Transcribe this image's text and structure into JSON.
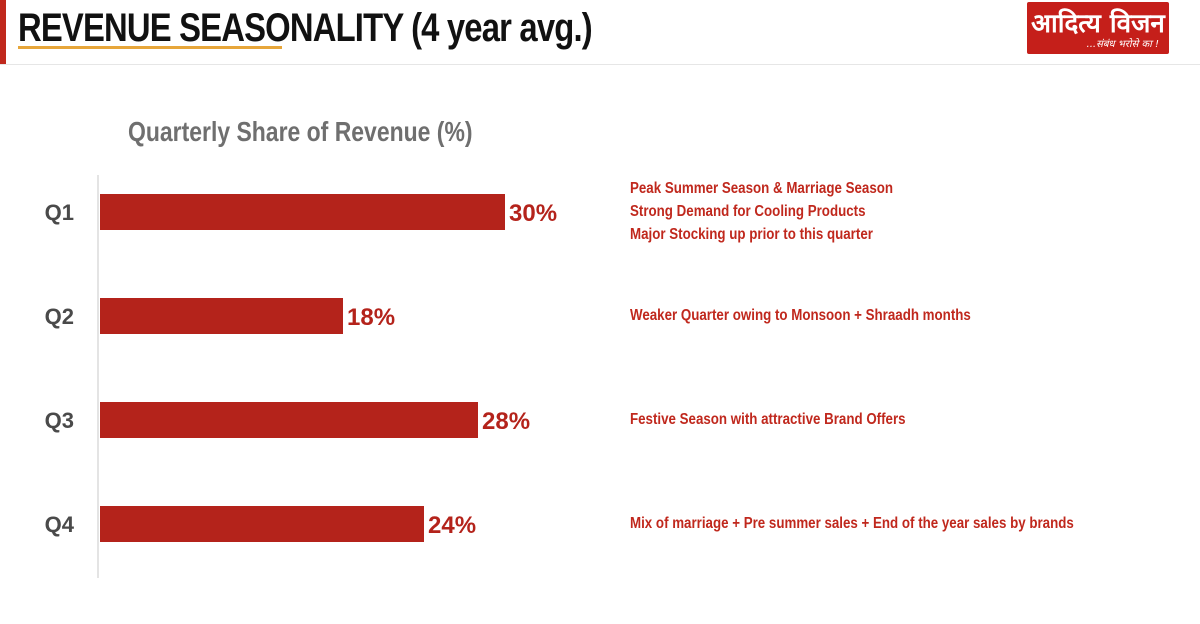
{
  "header": {
    "title": "REVENUE SEASONALITY (4 year avg.)",
    "logo_text": "आदित्य विजन",
    "logo_tagline": "...संबंध भरोसे का !"
  },
  "colors": {
    "bar": "#b4231b",
    "value_label": "#b4231b",
    "category_label": "#4a4a4a",
    "note_text": "#c0281d"
  },
  "chart_data": {
    "type": "bar",
    "orientation": "horizontal",
    "title": "Quarterly Share of Revenue (%)",
    "categories": [
      "Q1",
      "Q2",
      "Q3",
      "Q4"
    ],
    "values": [
      30,
      18,
      28,
      24
    ],
    "value_labels": [
      "30%",
      "18%",
      "28%",
      "24%"
    ],
    "xlim": [
      0,
      30
    ],
    "grid": false,
    "legend": "none"
  },
  "notes": [
    [
      "Peak Summer Season & Marriage Season",
      "Strong Demand for Cooling Products",
      "Major Stocking up prior to this quarter"
    ],
    [
      "Weaker Quarter owing to Monsoon + Shraadh months"
    ],
    [
      "Festive Season with attractive Brand Offers"
    ],
    [
      "Mix of marriage + Pre summer sales + End of the year sales by brands"
    ]
  ]
}
